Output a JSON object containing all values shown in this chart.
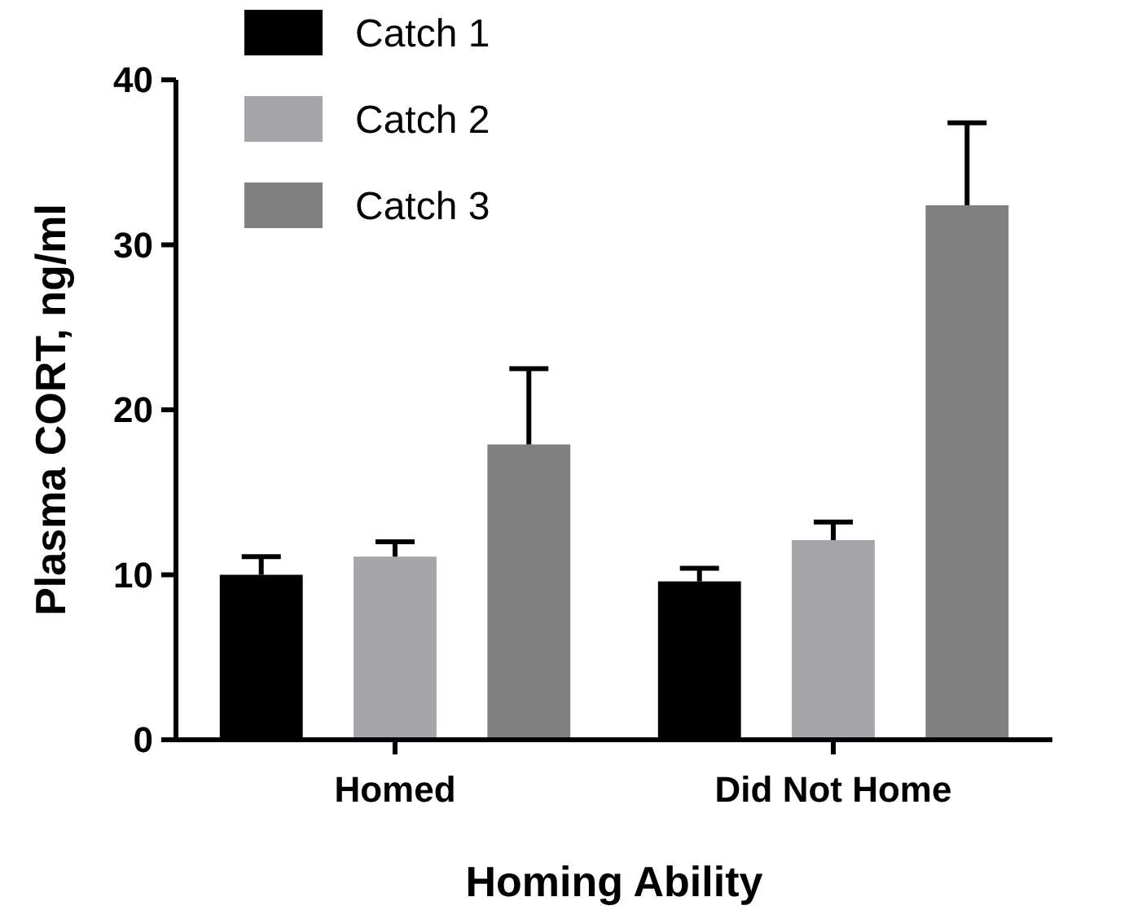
{
  "chart_data": {
    "type": "bar",
    "xlabel": "Homing Ability",
    "ylabel": "Plasma CORT, ng/ml",
    "categories": [
      "Homed",
      "Did Not Home"
    ],
    "series": [
      {
        "name": "Catch 1",
        "color": "#000000",
        "values": [
          10,
          9.6
        ],
        "errors": [
          [
            10,
            11.1
          ],
          [
            9.6,
            10.4
          ]
        ]
      },
      {
        "name": "Catch 2",
        "color": "#a6a5aa",
        "values": [
          11.1,
          12.1
        ],
        "errors": [
          [
            11.1,
            12
          ],
          [
            12.1,
            13.2
          ]
        ]
      },
      {
        "name": "Catch 3",
        "color": "#808080",
        "values": [
          17.9,
          32.4
        ],
        "errors": [
          [
            17.9,
            22.5
          ],
          [
            32.4,
            37.4
          ]
        ]
      }
    ],
    "ylim": [
      0,
      40
    ],
    "yticks": [
      0,
      10,
      20,
      30,
      40
    ],
    "grid": false,
    "legend": "top left"
  }
}
